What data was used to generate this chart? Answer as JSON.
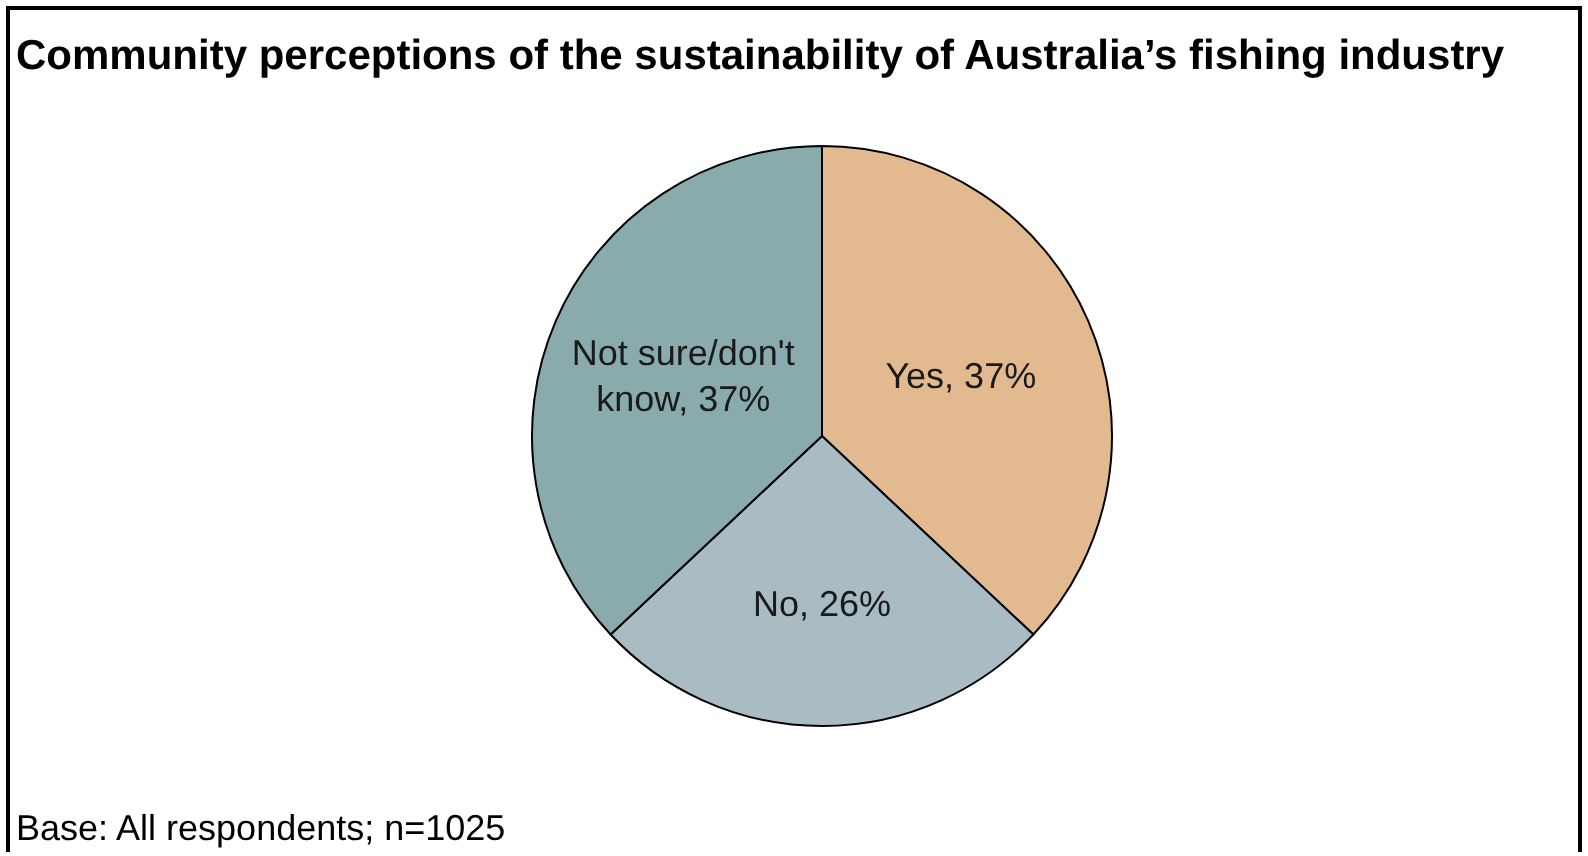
{
  "chart_data": {
    "type": "pie",
    "title": "Community perceptions of the sustainability of Australia’s fishing industry",
    "categories": [
      "Yes",
      "No",
      "Not sure/don't know"
    ],
    "values": [
      37,
      26,
      37
    ],
    "colors": [
      "#e3b990",
      "#a9bcc4",
      "#8aabad"
    ],
    "value_labels": [
      "37%",
      "26%",
      "37%"
    ],
    "annotations": [
      "Base: All respondents; n=1025"
    ]
  }
}
